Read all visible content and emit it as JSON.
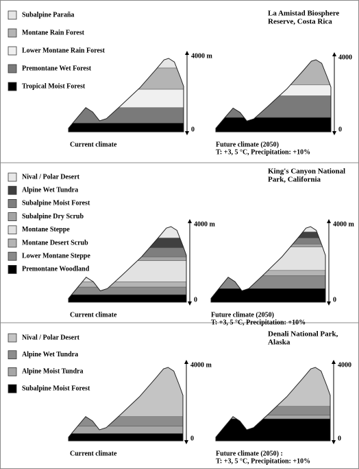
{
  "panels": [
    {
      "title": [
        "La Amistad Biosphere",
        "Reserve, Costa Rica"
      ],
      "legend": [
        {
          "label": "Subalpine Paraña",
          "color": "#e6e6e6"
        },
        {
          "label": "Montane Rain Forest",
          "color": "#b4b4b4"
        },
        {
          "label": "Lower Montane Rain Forest",
          "color": "#f0f0f0"
        },
        {
          "label": "Premontane Wet Forest",
          "color": "#7a7a7a"
        },
        {
          "label": "Tropical Moist Forest",
          "color": "#000000"
        }
      ],
      "current": {
        "top_label": "4000 m",
        "bottom_label": "0",
        "caption": [
          "Current climate"
        ]
      },
      "future": {
        "top_label": "4000",
        "bottom_label": "0",
        "caption": [
          "Future climate (2050)",
          "T: +3, 5 °C,  Precipitation: +10%"
        ]
      }
    },
    {
      "title": [
        "King's Canyon National",
        "Park, California"
      ],
      "legend": [
        {
          "label": "Nival / Polar Desert",
          "color": "#e8e8e8"
        },
        {
          "label": "Alpine Wet Tundra",
          "color": "#404040"
        },
        {
          "label": "Subalpine Moist Forest",
          "color": "#7e7e7e"
        },
        {
          "label": "Subalpine Dry Scrub",
          "color": "#a4a4a4"
        },
        {
          "label": "Montane Steppe",
          "color": "#e2e2e2"
        },
        {
          "label": "Montane Desert Scrub",
          "color": "#b4b4b4"
        },
        {
          "label": "Lower Montane Steppe",
          "color": "#8a8a8a"
        },
        {
          "label": "Premontane Woodland",
          "color": "#000000"
        }
      ],
      "current": {
        "top_label": "4000 m",
        "bottom_label": "0",
        "caption": [
          "Current climate"
        ]
      },
      "future": {
        "top_label": "4000 m",
        "bottom_label": "0",
        "caption": [
          "Future climate (2050)",
          "T: +3, 5 °C,  Precipitation: +10%"
        ]
      }
    },
    {
      "title": [
        "Denali National Park,",
        "Alaska"
      ],
      "legend": [
        {
          "label": "Nival / Polar Desert",
          "color": "#c4c4c4"
        },
        {
          "label": "Alpine Wet Tundra",
          "color": "#8c8c8c"
        },
        {
          "label": "Alpine Moist Tundra",
          "color": "#a6a6a6"
        },
        {
          "label": "Subalpine Moist Forest",
          "color": "#000000"
        }
      ],
      "current": {
        "top_label": "4000 m",
        "bottom_label": "0",
        "caption": [
          "Current climate"
        ]
      },
      "future": {
        "top_label": "4000",
        "bottom_label": "0",
        "caption": [
          "Future climate (2050) :",
          "T: +3, 5 °C,  Precipitation: +10%"
        ]
      }
    }
  ]
}
